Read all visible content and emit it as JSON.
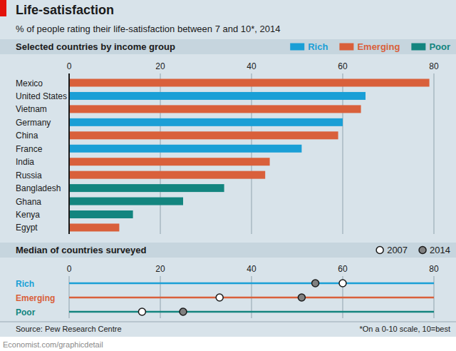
{
  "title": "Life-satisfaction",
  "subtitle": "% of people rating their life-satisfaction between 7 and 10*, 2014",
  "source": "Source: Pew Research Centre",
  "note": "*On a 0-10 scale, 10=best",
  "footer": "Economist.com/graphicdetail",
  "chart_data": [
    {
      "type": "bar",
      "orientation": "horizontal",
      "title": "Selected countries by income group",
      "categories": [
        "Mexico",
        "United States",
        "Vietnam",
        "Germany",
        "China",
        "France",
        "India",
        "Russia",
        "Bangladesh",
        "Ghana",
        "Kenya",
        "Egypt"
      ],
      "series": [
        {
          "name": "Rich",
          "color": "#1a9fd6",
          "values": [
            null,
            65,
            null,
            60,
            null,
            51,
            null,
            null,
            null,
            null,
            null,
            null
          ]
        },
        {
          "name": "Emerging",
          "color": "#d9603b",
          "values": [
            79,
            null,
            64,
            null,
            59,
            null,
            44,
            43,
            null,
            null,
            null,
            11
          ]
        },
        {
          "name": "Poor",
          "color": "#13857f",
          "values": [
            null,
            null,
            null,
            null,
            null,
            null,
            null,
            null,
            34,
            25,
            14,
            null
          ]
        }
      ],
      "xlim": [
        0,
        80
      ],
      "xticks": [
        0,
        20,
        40,
        60,
        80
      ],
      "grid": true,
      "legend": "top-right"
    },
    {
      "type": "dot",
      "orientation": "horizontal",
      "title": "Median of countries surveyed",
      "categories": [
        "Rich",
        "Emerging",
        "Poor"
      ],
      "colors": [
        "#1a9fd6",
        "#d9603b",
        "#13857f"
      ],
      "series": [
        {
          "name": "2007",
          "marker": "open-circle",
          "color": "#ffffff",
          "values": [
            60,
            33,
            16
          ]
        },
        {
          "name": "2014",
          "marker": "filled-circle",
          "color": "#808080",
          "values": [
            54,
            51,
            25
          ]
        }
      ],
      "xlim": [
        0,
        80
      ],
      "xticks": [
        0,
        20,
        40,
        60,
        80
      ],
      "grid": true,
      "legend": "top-right"
    }
  ]
}
